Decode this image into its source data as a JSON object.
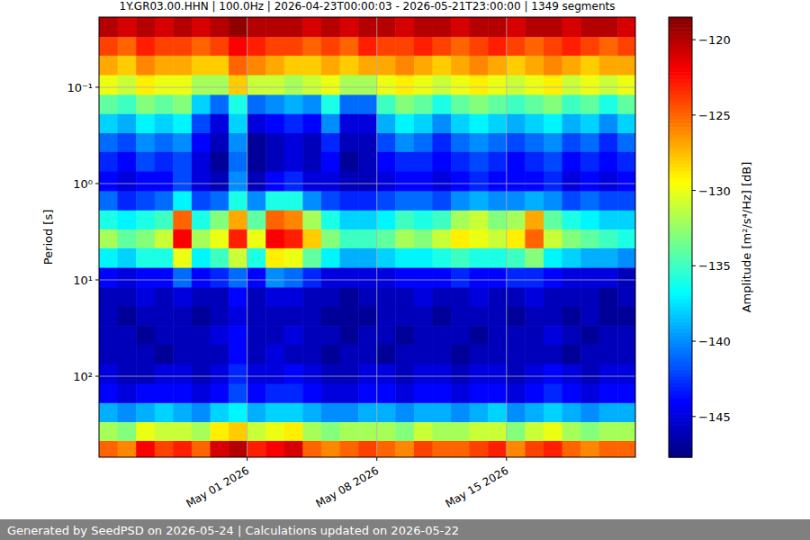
{
  "chart_data": {
    "type": "heatmap",
    "title": "1Y.GR03.00.HHN | 100.0Hz | 2026-04-23T00:00:03 - 2026-05-21T23:00:00 | 1349 segments",
    "y_label": "Period [s]",
    "colorbar_label": "Amplitude [m²/s⁴/Hz] [dB]",
    "footer": "Generated by SeedPSD on 2026-05-24 | Calculations updated on 2026-05-22",
    "xlim": [
      "2026-04-23T00:00:03",
      "2026-05-21T23:00:00"
    ],
    "xticks": [
      {
        "value": "2026-05-01T00:00:00",
        "label": "May 01 2026"
      },
      {
        "value": "2026-05-08T00:00:00",
        "label": "May 08 2026"
      },
      {
        "value": "2026-05-15T00:00:00",
        "label": "May 15 2026"
      }
    ],
    "ylim": [
      0.0187,
      693
    ],
    "yticks": [
      {
        "value": 0.1,
        "label": "10⁻¹"
      },
      {
        "value": 1,
        "label": "10⁰"
      },
      {
        "value": 10,
        "label": "10¹"
      },
      {
        "value": 100,
        "label": "10²"
      }
    ],
    "log": "y",
    "grid": true,
    "x_bins": [
      "2026-04-23T00:00:00",
      "2026-04-24T00:00:00",
      "2026-04-25T00:00:00",
      "2026-04-26T00:00:00",
      "2026-04-27T00:00:00",
      "2026-04-28T00:00:00",
      "2026-04-29T00:00:00",
      "2026-04-30T00:00:00",
      "2026-05-01T00:00:00",
      "2026-05-02T00:00:00",
      "2026-05-03T00:00:00",
      "2026-05-04T00:00:00",
      "2026-05-05T00:00:00",
      "2026-05-06T00:00:00",
      "2026-05-07T00:00:00",
      "2026-05-08T00:00:00",
      "2026-05-09T00:00:00",
      "2026-05-10T00:00:00",
      "2026-05-11T00:00:00",
      "2026-05-12T00:00:00",
      "2026-05-13T00:00:00",
      "2026-05-14T00:00:00",
      "2026-05-15T00:00:00",
      "2026-05-16T00:00:00",
      "2026-05-17T00:00:00",
      "2026-05-18T00:00:00",
      "2026-05-19T00:00:00",
      "2026-05-20T00:00:00",
      "2026-05-21T00:00:00",
      "2026-05-22T00:00:00"
    ],
    "y_bins": [
      0.0187,
      0.03,
      0.047,
      0.075,
      0.12,
      0.19,
      0.3,
      0.47,
      0.75,
      1.2,
      1.9,
      3,
      4.7,
      7.5,
      12,
      19,
      30,
      47,
      75,
      120,
      190,
      300,
      470,
      693
    ],
    "cells": [
      [
        -120,
        -121,
        -120,
        -121,
        -120,
        -121,
        -120,
        -119,
        -120,
        -120,
        -120,
        -121,
        -120,
        -121,
        -120,
        -120,
        -121,
        -120,
        -120,
        -121,
        -120,
        -120,
        -121,
        -120,
        -120,
        -121,
        -120,
        -120,
        -121
      ],
      [
        -124,
        -125,
        -123,
        -124,
        -124,
        -125,
        -124,
        -122,
        -123,
        -124,
        -124,
        -125,
        -124,
        -125,
        -123,
        -124,
        -124,
        -123,
        -124,
        -125,
        -124,
        -123,
        -124,
        -125,
        -124,
        -123,
        -124,
        -125,
        -124
      ],
      [
        -127,
        -128,
        -126,
        -127,
        -127,
        -128,
        -128,
        -125,
        -126,
        -127,
        -128,
        -128,
        -127,
        -128,
        -127,
        -127,
        -126,
        -127,
        -128,
        -127,
        -126,
        -127,
        -128,
        -127,
        -126,
        -127,
        -128,
        -127,
        -127
      ],
      [
        -130,
        -131,
        -129,
        -130,
        -130,
        -132,
        -132,
        -128,
        -131,
        -131,
        -132,
        -131,
        -130,
        -132,
        -132,
        -130,
        -129,
        -130,
        -131,
        -130,
        -129,
        -130,
        -131,
        -130,
        -129,
        -131,
        -130,
        -131,
        -130
      ],
      [
        -134,
        -135,
        -133,
        -134,
        -133,
        -138,
        -141,
        -136,
        -141,
        -140,
        -139,
        -140,
        -136,
        -141,
        -141,
        -135,
        -133,
        -134,
        -136,
        -134,
        -133,
        -134,
        -135,
        -134,
        -133,
        -135,
        -134,
        -136,
        -134
      ],
      [
        -138,
        -139,
        -137,
        -138,
        -137,
        -142,
        -145,
        -138,
        -145,
        -144,
        -143,
        -144,
        -140,
        -145,
        -145,
        -139,
        -137,
        -138,
        -140,
        -138,
        -137,
        -138,
        -139,
        -138,
        -137,
        -139,
        -138,
        -140,
        -138
      ],
      [
        -141,
        -142,
        -140,
        -141,
        -140,
        -144,
        -146,
        -140,
        -147,
        -146,
        -145,
        -146,
        -143,
        -146,
        -146,
        -142,
        -140,
        -141,
        -143,
        -141,
        -140,
        -141,
        -142,
        -141,
        -140,
        -142,
        -141,
        -143,
        -141
      ],
      [
        -143,
        -144,
        -142,
        -143,
        -142,
        -145,
        -147,
        -141,
        -147,
        -146,
        -145,
        -146,
        -144,
        -147,
        -146,
        -144,
        -143,
        -143,
        -144,
        -143,
        -142,
        -143,
        -144,
        -143,
        -142,
        -144,
        -143,
        -144,
        -143
      ],
      [
        -144,
        -145,
        -144,
        -144,
        -142,
        -145,
        -146,
        -140,
        -146,
        -144,
        -143,
        -145,
        -145,
        -146,
        -146,
        -145,
        -144,
        -144,
        -145,
        -144,
        -143,
        -144,
        -144,
        -144,
        -143,
        -145,
        -144,
        -145,
        -144
      ],
      [
        -141,
        -143,
        -142,
        -141,
        -137,
        -142,
        -141,
        -136,
        -140,
        -136,
        -136,
        -140,
        -142,
        -143,
        -143,
        -142,
        -141,
        -141,
        -142,
        -140,
        -139,
        -140,
        -140,
        -139,
        -140,
        -142,
        -141,
        -142,
        -142
      ],
      [
        -136,
        -137,
        -136,
        -135,
        -125,
        -136,
        -133,
        -127,
        -134,
        -125,
        -126,
        -132,
        -136,
        -138,
        -138,
        -137,
        -135,
        -136,
        -135,
        -132,
        -131,
        -133,
        -132,
        -127,
        -134,
        -136,
        -137,
        -138,
        -138
      ],
      [
        -132,
        -134,
        -133,
        -131,
        -122,
        -132,
        -130,
        -123,
        -130,
        -122,
        -123,
        -128,
        -133,
        -135,
        -135,
        -134,
        -132,
        -133,
        -131,
        -129,
        -130,
        -131,
        -129,
        -125,
        -131,
        -133,
        -134,
        -135,
        -136
      ],
      [
        -137,
        -138,
        -136,
        -136,
        -130,
        -137,
        -135,
        -131,
        -136,
        -129,
        -130,
        -134,
        -137,
        -139,
        -139,
        -138,
        -137,
        -137,
        -136,
        -135,
        -136,
        -136,
        -135,
        -133,
        -137,
        -138,
        -139,
        -139,
        -140
      ],
      [
        -144,
        -145,
        -144,
        -144,
        -141,
        -144,
        -143,
        -141,
        -144,
        -140,
        -141,
        -143,
        -145,
        -145,
        -145,
        -145,
        -144,
        -144,
        -144,
        -143,
        -144,
        -144,
        -143,
        -143,
        -144,
        -145,
        -145,
        -145,
        -146
      ],
      [
        -146,
        -146,
        -145,
        -146,
        -145,
        -146,
        -146,
        -144,
        -146,
        -145,
        -145,
        -146,
        -146,
        -147,
        -146,
        -146,
        -146,
        -145,
        -146,
        -146,
        -145,
        -146,
        -146,
        -145,
        -146,
        -146,
        -146,
        -147,
        -146
      ],
      [
        -146,
        -147,
        -146,
        -146,
        -146,
        -147,
        -146,
        -145,
        -146,
        -146,
        -146,
        -146,
        -147,
        -147,
        -147,
        -146,
        -146,
        -146,
        -147,
        -146,
        -146,
        -146,
        -147,
        -146,
        -146,
        -147,
        -146,
        -147,
        -147
      ],
      [
        -146,
        -146,
        -147,
        -146,
        -146,
        -146,
        -145,
        -144,
        -146,
        -146,
        -145,
        -146,
        -146,
        -147,
        -146,
        -146,
        -147,
        -146,
        -146,
        -146,
        -147,
        -146,
        -146,
        -146,
        -145,
        -146,
        -147,
        -146,
        -146
      ],
      [
        -146,
        -146,
        -146,
        -147,
        -146,
        -146,
        -146,
        -144,
        -146,
        -145,
        -146,
        -146,
        -147,
        -146,
        -146,
        -147,
        -146,
        -146,
        -146,
        -147,
        -146,
        -146,
        -146,
        -146,
        -146,
        -147,
        -146,
        -146,
        -146
      ],
      [
        -145,
        -146,
        -146,
        -145,
        -145,
        -146,
        -145,
        -143,
        -145,
        -145,
        -144,
        -145,
        -146,
        -146,
        -145,
        -145,
        -146,
        -145,
        -145,
        -146,
        -145,
        -145,
        -146,
        -145,
        -144,
        -145,
        -146,
        -145,
        -145
      ],
      [
        -144,
        -145,
        -144,
        -144,
        -144,
        -145,
        -144,
        -142,
        -144,
        -143,
        -143,
        -144,
        -145,
        -145,
        -144,
        -144,
        -145,
        -144,
        -144,
        -145,
        -144,
        -144,
        -145,
        -144,
        -143,
        -144,
        -145,
        -144,
        -144
      ],
      [
        -139,
        -140,
        -139,
        -138,
        -139,
        -140,
        -138,
        -137,
        -139,
        -138,
        -138,
        -139,
        -140,
        -140,
        -139,
        -139,
        -140,
        -139,
        -139,
        -140,
        -139,
        -138,
        -140,
        -139,
        -138,
        -139,
        -140,
        -139,
        -139
      ],
      [
        -132,
        -133,
        -130,
        -131,
        -131,
        -132,
        -129,
        -128,
        -131,
        -130,
        -129,
        -132,
        -133,
        -132,
        -132,
        -132,
        -133,
        -131,
        -132,
        -132,
        -131,
        -131,
        -133,
        -131,
        -130,
        -132,
        -133,
        -132,
        -132
      ],
      [
        -125,
        -126,
        -122,
        -124,
        -123,
        -125,
        -121,
        -120,
        -123,
        -122,
        -121,
        -125,
        -126,
        -125,
        -124,
        -125,
        -126,
        -124,
        -125,
        -125,
        -124,
        -123,
        -126,
        -124,
        -123,
        -125,
        -126,
        -125,
        -125
      ]
    ],
    "colorbar_lim": [
      -147.7,
      -118.5
    ],
    "colorbar_ticks": [
      {
        "value": -120,
        "label": "−120"
      },
      {
        "value": -125,
        "label": "−125"
      },
      {
        "value": -130,
        "label": "−130"
      },
      {
        "value": -135,
        "label": "−135"
      },
      {
        "value": -140,
        "label": "−140"
      },
      {
        "value": -145,
        "label": "−145"
      }
    ]
  }
}
